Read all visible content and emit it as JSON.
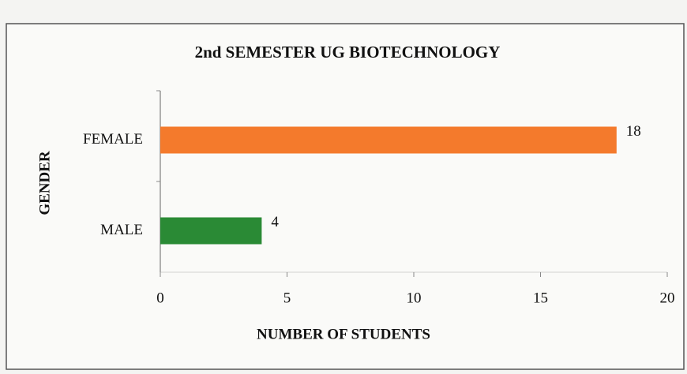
{
  "chart_data": {
    "type": "bar",
    "orientation": "horizontal",
    "title": "2nd SEMESTER UG BIOTECHNOLOGY",
    "x_label": "NUMBER OF STUDENTS",
    "y_label": "GENDER",
    "categories": [
      "FEMALE",
      "MALE"
    ],
    "values": [
      18,
      4
    ],
    "colors": [
      "#f47a2c",
      "#2a8a35"
    ],
    "xlim": [
      0,
      20
    ],
    "xticks": [
      0,
      5,
      10,
      15,
      20
    ]
  }
}
